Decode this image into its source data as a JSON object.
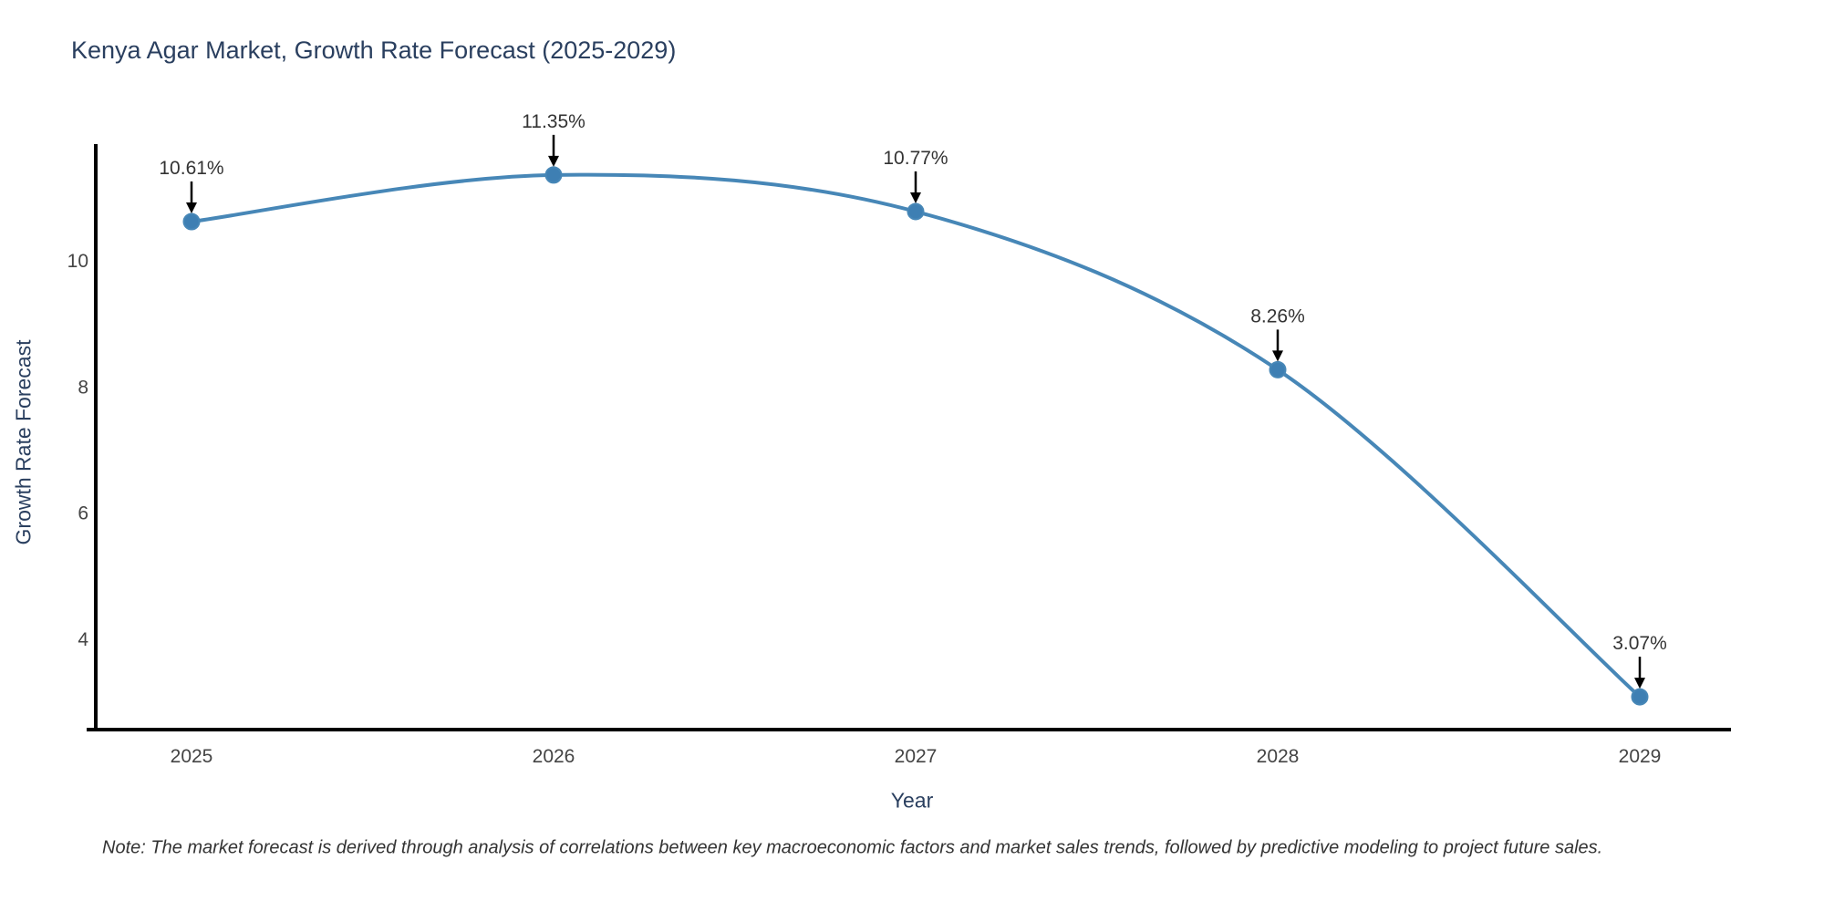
{
  "chart_data": {
    "type": "line",
    "title": "Kenya Agar Market, Growth Rate Forecast (2025-2029)",
    "xlabel": "Year",
    "ylabel": "Growth Rate Forecast",
    "x": [
      "2025",
      "2026",
      "2027",
      "2028",
      "2029"
    ],
    "series": [
      {
        "name": "Growth Rate Forecast",
        "values": [
          10.61,
          11.35,
          10.77,
          8.26,
          3.07
        ]
      }
    ],
    "point_labels": [
      "10.61%",
      "11.35%",
      "10.77%",
      "8.26%",
      "3.07%"
    ],
    "yticks": [
      4,
      6,
      8,
      10
    ],
    "ylim": [
      2.55,
      11.84
    ],
    "line_shape": "spline",
    "grid": false,
    "legend": "none",
    "colors": {
      "line": "#4787b7",
      "marker": "#3e7fb3",
      "axis": "#000000",
      "title_text": "#2a3f5f",
      "tick_text": "#444444",
      "annotation_text": "#333333",
      "arrow": "#000000"
    }
  },
  "note": {
    "text": "Note: The market forecast is derived through analysis of correlations between key macroeconomic factors and market sales trends, followed by predictive modeling to project future sales."
  }
}
